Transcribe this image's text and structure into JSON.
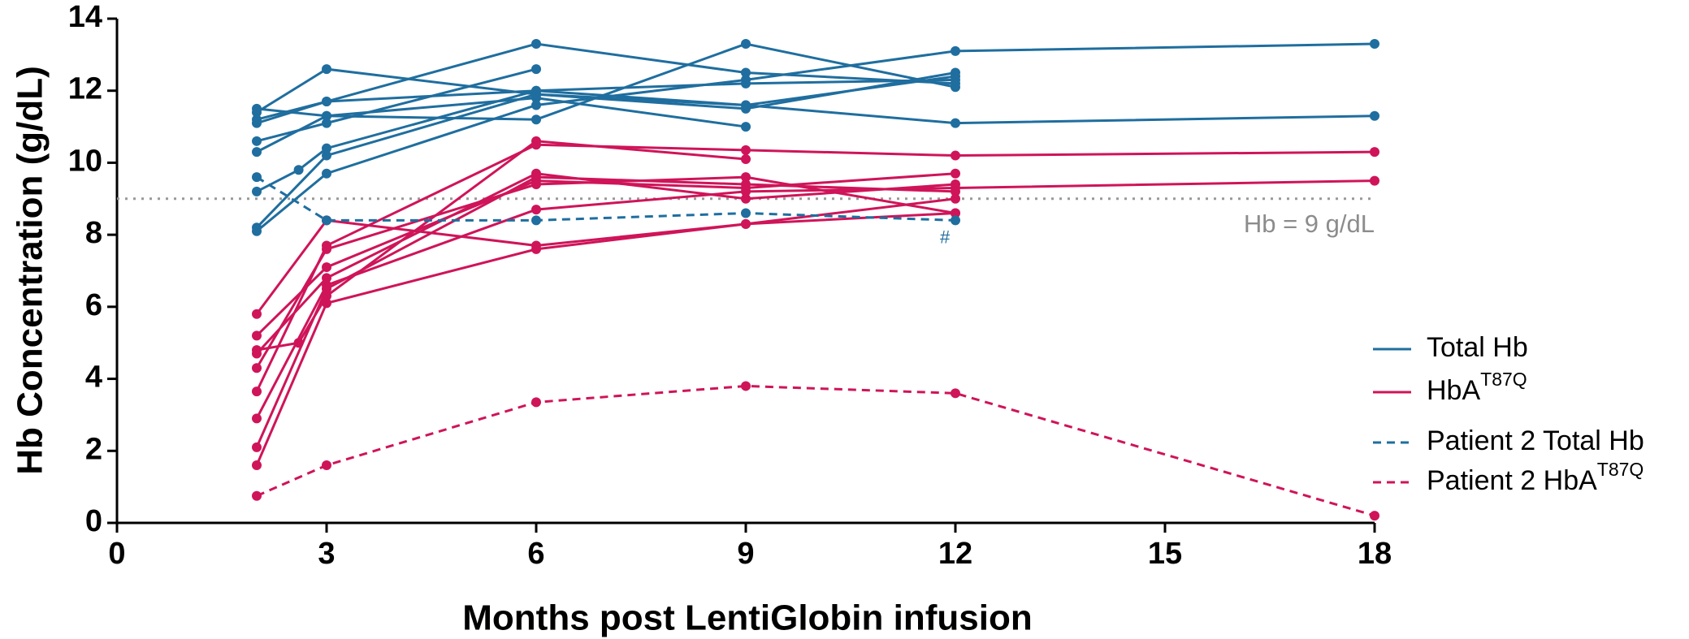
{
  "chart_data": {
    "type": "line",
    "xlabel": "Months post LentiGlobin infusion",
    "ylabel": "Hb Concentration (g/dL)",
    "xlim": [
      0,
      18
    ],
    "xticks": [
      0,
      3,
      6,
      9,
      12,
      15,
      18
    ],
    "ylim": [
      0,
      14
    ],
    "yticks": [
      0,
      2,
      4,
      6,
      8,
      10,
      12,
      14
    ],
    "legend": "right",
    "reference_line": {
      "y": 9,
      "label": "Hb = 9 g/dL"
    },
    "annotations": [
      {
        "text": "#",
        "x": 11.85,
        "y": 7.9
      }
    ],
    "series": [
      {
        "name": "Total Hb",
        "color": "#1f6e9f",
        "dashed": false,
        "lines": [
          {
            "x": [
              2,
              3,
              6,
              9,
              12
            ],
            "values": [
              11.4,
              12.6,
              11.9,
              11.6,
              12.4
            ]
          },
          {
            "x": [
              2,
              3,
              6,
              9,
              12
            ],
            "values": [
              11.2,
              11.7,
              13.3,
              12.5,
              12.2
            ]
          },
          {
            "x": [
              2,
              3,
              6,
              9,
              12
            ],
            "values": [
              11.5,
              11.3,
              11.2,
              13.3,
              12.1
            ]
          },
          {
            "x": [
              2,
              3,
              6
            ],
            "values": [
              10.6,
              11.1,
              12.6
            ]
          },
          {
            "x": [
              2,
              3,
              6,
              9
            ],
            "values": [
              10.3,
              11.3,
              11.8,
              11.0
            ]
          },
          {
            "x": [
              2,
              2.6,
              3,
              6,
              9,
              12
            ],
            "values": [
              9.2,
              9.8,
              10.4,
              12.0,
              12.2,
              12.3
            ]
          },
          {
            "x": [
              2,
              3,
              6,
              9,
              12
            ],
            "values": [
              8.2,
              10.2,
              11.9,
              11.5,
              12.5
            ]
          },
          {
            "x": [
              2,
              3,
              6,
              9,
              12,
              18
            ],
            "values": [
              8.1,
              9.7,
              11.6,
              12.3,
              13.1,
              13.3
            ]
          },
          {
            "x": [
              2,
              3,
              6,
              9,
              12,
              18
            ],
            "values": [
              11.1,
              11.7,
              12.0,
              11.6,
              11.1,
              11.3
            ]
          }
        ]
      },
      {
        "name": "HbA",
        "name_superscript": "T87Q",
        "color": "#cf1459",
        "dashed": false,
        "lines": [
          {
            "x": [
              2,
              3,
              6,
              9,
              12
            ],
            "values": [
              5.8,
              8.4,
              7.7,
              8.3,
              8.6
            ]
          },
          {
            "x": [
              2,
              3,
              6,
              9,
              12
            ],
            "values": [
              5.2,
              7.1,
              9.5,
              9.3,
              9.7
            ]
          },
          {
            "x": [
              2,
              2.6,
              3,
              6,
              9
            ],
            "values": [
              4.8,
              5.0,
              6.3,
              10.6,
              10.1
            ]
          },
          {
            "x": [
              2,
              3,
              6,
              9,
              12
            ],
            "values": [
              4.7,
              6.8,
              9.7,
              9.0,
              9.4
            ]
          },
          {
            "x": [
              2,
              3,
              6,
              9,
              12
            ],
            "values": [
              4.3,
              7.6,
              9.4,
              9.6,
              8.6
            ]
          },
          {
            "x": [
              2,
              3,
              6,
              9,
              12,
              18
            ],
            "values": [
              3.65,
              7.7,
              10.5,
              10.35,
              10.2,
              10.3
            ]
          },
          {
            "x": [
              2,
              3,
              6,
              9,
              12,
              18
            ],
            "values": [
              2.9,
              6.6,
              8.7,
              9.2,
              9.3,
              9.5
            ]
          },
          {
            "x": [
              2,
              3,
              6,
              9,
              12
            ],
            "values": [
              2.1,
              6.5,
              9.6,
              9.4,
              9.2
            ]
          },
          {
            "x": [
              2,
              3,
              6,
              9,
              12
            ],
            "values": [
              1.6,
              6.1,
              7.6,
              8.3,
              9.0
            ]
          }
        ]
      },
      {
        "name": "Patient 2 Total Hb",
        "color": "#1f6e9f",
        "dashed": true,
        "lines": [
          {
            "x": [
              2,
              3,
              6,
              9,
              12
            ],
            "values": [
              9.6,
              8.4,
              8.4,
              8.6,
              8.4
            ]
          }
        ]
      },
      {
        "name": "Patient 2 HbA",
        "name_superscript": "T87Q",
        "color": "#cf1459",
        "dashed": true,
        "lines": [
          {
            "x": [
              2,
              3,
              6,
              9,
              12,
              18
            ],
            "values": [
              0.75,
              1.6,
              3.35,
              3.8,
              3.6,
              0.2
            ]
          }
        ]
      }
    ]
  }
}
